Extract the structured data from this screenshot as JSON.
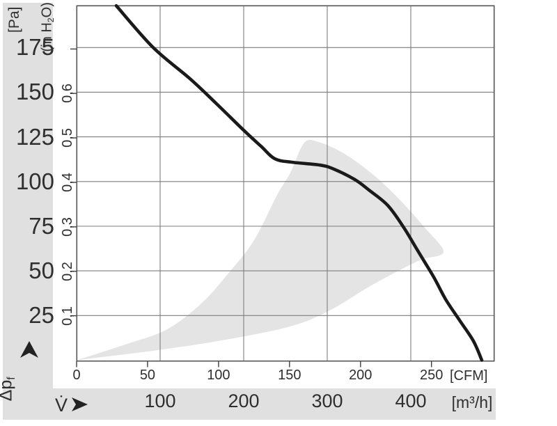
{
  "colors": {
    "band": "#e0e0e0",
    "operating_region": "#e4e4e4",
    "grid": "#7d7d7d",
    "plot_border": "#565656",
    "curve": "#1a1a1a",
    "text": "#2f2f2f"
  },
  "pa_axis": {
    "unit": "[Pa]",
    "ticks": [
      175,
      150,
      125,
      100,
      75,
      50,
      25
    ]
  },
  "inh2o_axis": {
    "unit_pre": "(in H",
    "unit_sub": "2",
    "unit_post": "O)",
    "ticks": [
      {
        "value": 0.6,
        "label": "0,6"
      },
      {
        "value": 0.5,
        "label": "0,5"
      },
      {
        "value": 0.4,
        "label": "0,4"
      },
      {
        "value": 0.3,
        "label": "0,3"
      },
      {
        "value": 0.2,
        "label": "0,2"
      },
      {
        "value": 0.1,
        "label": "0,1"
      }
    ],
    "unlabeled_tick_values": [
      0.7
    ],
    "pa_per_inh2o": 248.84
  },
  "cfm_axis": {
    "unit": "[CFM]",
    "ticks": [
      0,
      50,
      100,
      150,
      200,
      250
    ]
  },
  "m3h_axis": {
    "unit": "[m³/h]",
    "flow_symbol": "V̇",
    "ticks": [
      100,
      200,
      300,
      400
    ]
  },
  "dp_axis": {
    "symbol": "Δp",
    "subscript": "f"
  },
  "chart_data": {
    "type": "line",
    "title": "",
    "x_unit": "m³/h",
    "xlim": [
      0,
      500
    ],
    "y_unit": "Pa",
    "ylim": [
      0,
      198.4
    ],
    "x2_unit": "CFM",
    "x2lim": [
      0,
      294.3
    ],
    "m3h_per_cfm": 1.699,
    "y2_unit": "in H2O",
    "grid": "on",
    "legend": "none",
    "series": [
      {
        "name": "fan-characteristic-curve",
        "points": [
          [
            47.5,
            198.4
          ],
          [
            91.7,
            175.0
          ],
          [
            135.8,
            157.5
          ],
          [
            166.7,
            143.9
          ],
          [
            200.0,
            128.7
          ],
          [
            220.8,
            119.7
          ],
          [
            237.5,
            112.7
          ],
          [
            258.3,
            110.8
          ],
          [
            291.7,
            109.2
          ],
          [
            308.3,
            106.9
          ],
          [
            333.3,
            101.0
          ],
          [
            350.0,
            95.2
          ],
          [
            372.5,
            86.6
          ],
          [
            391.7,
            74.2
          ],
          [
            408.3,
            61.3
          ],
          [
            427.5,
            46.5
          ],
          [
            441.7,
            34.1
          ],
          [
            458.3,
            22.4
          ],
          [
            475.0,
            10.7
          ],
          [
            485.0,
            0.0
          ]
        ]
      }
    ],
    "operating_region": {
      "upper": [
        [
          0,
          0
        ],
        [
          58.3,
          8.8
        ],
        [
          108.3,
          17.3
        ],
        [
          150.0,
          32.1
        ],
        [
          183.3,
          49.6
        ],
        [
          212.5,
          67.2
        ],
        [
          240.0,
          92.5
        ],
        [
          255.8,
          104.9
        ],
        [
          272.5,
          121.7
        ],
        [
          290.0,
          122.1
        ],
        [
          316.7,
          116.6
        ],
        [
          341.7,
          108.8
        ],
        [
          366.7,
          99.1
        ],
        [
          391.7,
          87.4
        ],
        [
          416.7,
          74.2
        ],
        [
          439.2,
          60.6
        ]
      ],
      "lower": [
        [
          0,
          0
        ],
        [
          85.8,
          4.9
        ],
        [
          169.2,
          10.7
        ],
        [
          252.5,
          18.5
        ],
        [
          300.0,
          27.1
        ],
        [
          350.0,
          41.1
        ],
        [
          383.3,
          49.6
        ],
        [
          412.5,
          56.3
        ],
        [
          439.2,
          60.6
        ]
      ]
    }
  }
}
